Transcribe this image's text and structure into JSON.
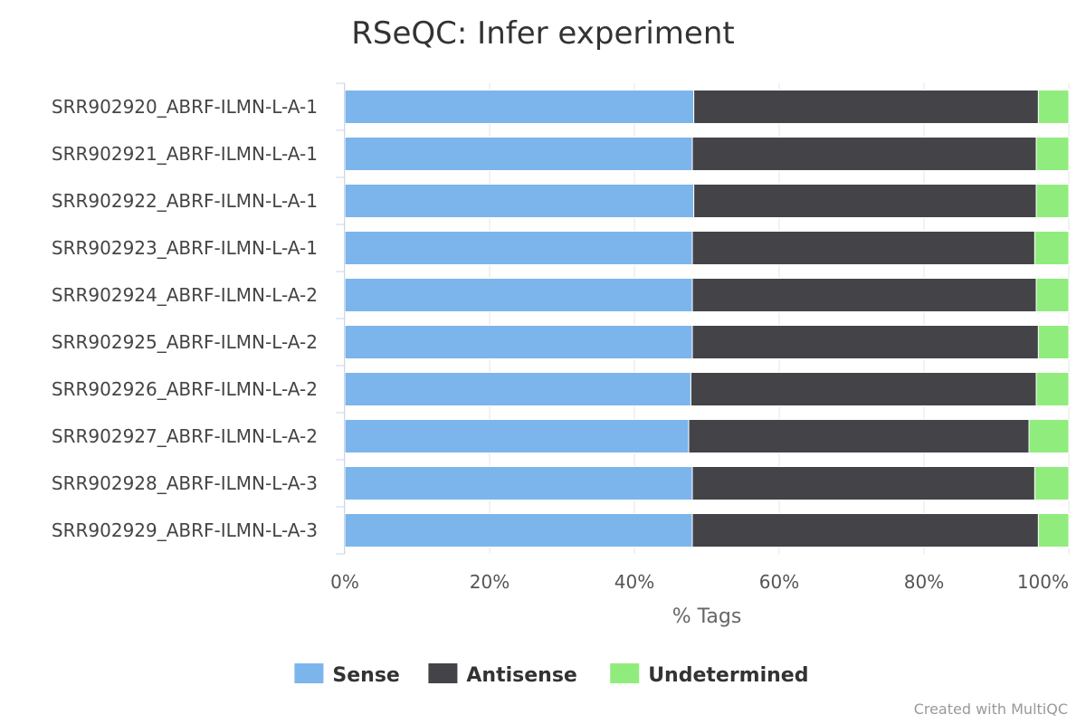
{
  "chart_data": {
    "type": "bar",
    "orientation": "horizontal",
    "stacking": "percent",
    "title": "RSeQC: Infer experiment",
    "xlabel": "% Tags",
    "ylabel": "",
    "xlim": [
      0,
      100
    ],
    "xticks": [
      "0%",
      "20%",
      "40%",
      "60%",
      "80%",
      "100%"
    ],
    "categories": [
      "SRR902920_ABRF-ILMN-L-A-1",
      "SRR902921_ABRF-ILMN-L-A-1",
      "SRR902922_ABRF-ILMN-L-A-1",
      "SRR902923_ABRF-ILMN-L-A-1",
      "SRR902924_ABRF-ILMN-L-A-2",
      "SRR902925_ABRF-ILMN-L-A-2",
      "SRR902926_ABRF-ILMN-L-A-2",
      "SRR902927_ABRF-ILMN-L-A-2",
      "SRR902928_ABRF-ILMN-L-A-3",
      "SRR902929_ABRF-ILMN-L-A-3"
    ],
    "series": [
      {
        "name": "Sense",
        "color": "#7cb5ec",
        "values": [
          48.2,
          48.0,
          48.2,
          48.0,
          48.0,
          48.0,
          47.8,
          47.5,
          48.0,
          48.0
        ]
      },
      {
        "name": "Antisense",
        "color": "#434348",
        "values": [
          47.6,
          47.5,
          47.3,
          47.3,
          47.5,
          47.8,
          47.7,
          47.0,
          47.3,
          47.8
        ]
      },
      {
        "name": "Undetermined",
        "color": "#90ed7d",
        "values": [
          4.2,
          4.5,
          4.5,
          4.7,
          4.5,
          4.2,
          4.5,
          5.5,
          4.7,
          4.2
        ]
      }
    ],
    "legend_position": "bottom-center",
    "credits": "Created with MultiQC"
  }
}
